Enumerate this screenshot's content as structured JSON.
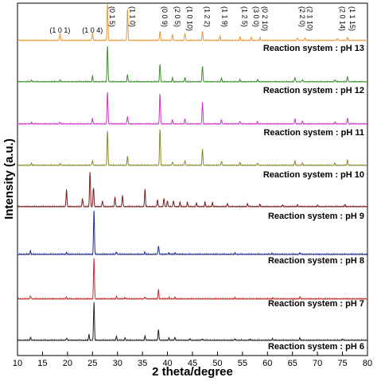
{
  "chart_data": {
    "type": "line",
    "xlabel": "2 theta/degree",
    "ylabel": "Intensity (a.u.)",
    "xlim": [
      10,
      80
    ],
    "x_ticks": [
      10,
      15,
      20,
      25,
      30,
      35,
      40,
      45,
      50,
      55,
      60,
      65,
      70,
      75,
      80
    ],
    "grid": false,
    "legend": "none",
    "peak_annotations": [
      {
        "label": "(1 0 1)",
        "x": 18.5,
        "vertical": false
      },
      {
        "label": "(1 0 4)",
        "x": 25.0,
        "vertical": false
      },
      {
        "label": "(0 1 5)",
        "x": 28.0,
        "vertical": true
      },
      {
        "label": "(1 1 0)",
        "x": 32.0,
        "vertical": true
      },
      {
        "label": "(0 0 9)",
        "x": 38.5,
        "vertical": true
      },
      {
        "label": "(2 0 5)",
        "x": 41.0,
        "vertical": true
      },
      {
        "label": "(1 0 10)",
        "x": 43.5,
        "vertical": true
      },
      {
        "label": "(1 2 2)",
        "x": 47.0,
        "vertical": true
      },
      {
        "label": "(1 1 9)",
        "x": 50.5,
        "vertical": true
      },
      {
        "label": "(1 2 5)",
        "x": 54.5,
        "vertical": true
      },
      {
        "label": "(3 0 0)",
        "x": 56.8,
        "vertical": true
      },
      {
        "label": "(0 2 10)",
        "x": 58.5,
        "vertical": true
      },
      {
        "label": "(2 2 0)",
        "x": 66.0,
        "vertical": true
      },
      {
        "label": "(2 1 10)",
        "x": 67.5,
        "vertical": true
      },
      {
        "label": "(2 0 14)",
        "x": 74.0,
        "vertical": true
      },
      {
        "label": "(1 1 15)",
        "x": 76.0,
        "vertical": true
      }
    ],
    "series": [
      {
        "name": "Reaction system : pH 13",
        "color": "#e69a3a",
        "peaks": [
          [
            18.5,
            0.2
          ],
          [
            25.0,
            0.22
          ],
          [
            28.0,
            1.0
          ],
          [
            32.0,
            0.85
          ],
          [
            38.5,
            0.25
          ],
          [
            41.0,
            0.17
          ],
          [
            43.5,
            0.2
          ],
          [
            47.0,
            0.25
          ],
          [
            50.5,
            0.13
          ],
          [
            54.5,
            0.1
          ],
          [
            56.8,
            0.08
          ],
          [
            58.5,
            0.08
          ],
          [
            66.0,
            0.08
          ],
          [
            67.5,
            0.08
          ],
          [
            74.0,
            0.06
          ],
          [
            76.0,
            0.08
          ]
        ]
      },
      {
        "name": "Reaction system : pH 12",
        "color": "#3f8f2e",
        "peaks": [
          [
            12.8,
            0.05
          ],
          [
            18.5,
            0.05
          ],
          [
            25.0,
            0.16
          ],
          [
            28.0,
            1.0
          ],
          [
            32.0,
            0.2
          ],
          [
            38.5,
            0.48
          ],
          [
            41.0,
            0.1
          ],
          [
            43.5,
            0.12
          ],
          [
            47.0,
            0.45
          ],
          [
            50.8,
            0.1
          ],
          [
            54.5,
            0.06
          ],
          [
            58.0,
            0.07
          ],
          [
            65.5,
            0.13
          ],
          [
            67.0,
            0.07
          ],
          [
            73.5,
            0.06
          ],
          [
            76.0,
            0.16
          ]
        ]
      },
      {
        "name": "Reaction system : pH 11",
        "color": "#cc33cc",
        "peaks": [
          [
            12.8,
            0.05
          ],
          [
            18.5,
            0.05
          ],
          [
            25.0,
            0.16
          ],
          [
            28.0,
            0.9
          ],
          [
            32.0,
            0.22
          ],
          [
            38.5,
            0.85
          ],
          [
            41.0,
            0.12
          ],
          [
            43.5,
            0.14
          ],
          [
            47.0,
            0.6
          ],
          [
            50.8,
            0.12
          ],
          [
            54.5,
            0.08
          ],
          [
            58.0,
            0.07
          ],
          [
            65.5,
            0.15
          ],
          [
            67.0,
            0.08
          ],
          [
            73.5,
            0.06
          ],
          [
            76.0,
            0.17
          ]
        ]
      },
      {
        "name": "Reaction system : pH 10",
        "color": "#8a8a2a",
        "peaks": [
          [
            12.8,
            0.06
          ],
          [
            18.5,
            0.05
          ],
          [
            25.0,
            0.14
          ],
          [
            28.0,
            0.95
          ],
          [
            32.0,
            0.25
          ],
          [
            38.5,
            1.0
          ],
          [
            41.0,
            0.1
          ],
          [
            43.5,
            0.14
          ],
          [
            47.0,
            0.45
          ],
          [
            50.8,
            0.12
          ],
          [
            54.5,
            0.08
          ],
          [
            58.0,
            0.07
          ],
          [
            65.5,
            0.12
          ],
          [
            67.0,
            0.07
          ],
          [
            73.5,
            0.06
          ],
          [
            76.0,
            0.14
          ]
        ]
      },
      {
        "name": "Reaction system : pH 9",
        "color": "#7a1e1e",
        "peaks": [
          [
            19.8,
            0.45
          ],
          [
            23.0,
            0.22
          ],
          [
            24.5,
            0.9
          ],
          [
            25.2,
            0.5
          ],
          [
            27.0,
            0.15
          ],
          [
            29.5,
            0.25
          ],
          [
            31.0,
            0.3
          ],
          [
            35.5,
            0.45
          ],
          [
            38.0,
            0.18
          ],
          [
            39.3,
            0.22
          ],
          [
            40.0,
            0.15
          ],
          [
            41.2,
            0.16
          ],
          [
            42.5,
            0.12
          ],
          [
            44.0,
            0.12
          ],
          [
            45.8,
            0.1
          ],
          [
            47.5,
            0.12
          ],
          [
            49.0,
            0.1
          ],
          [
            52.0,
            0.08
          ],
          [
            56.0,
            0.08
          ],
          [
            58.5,
            0.06
          ],
          [
            63.0,
            0.05
          ],
          [
            66.0,
            0.05
          ],
          [
            70.0,
            0.04
          ],
          [
            75.5,
            0.05
          ]
        ]
      },
      {
        "name": "Reaction system : pH 8",
        "color": "#1f2f8f",
        "peaks": [
          [
            12.6,
            0.08
          ],
          [
            19.8,
            0.04
          ],
          [
            25.3,
            1.0
          ],
          [
            29.8,
            0.06
          ],
          [
            35.5,
            0.05
          ],
          [
            38.2,
            0.2
          ],
          [
            40.3,
            0.04
          ],
          [
            41.5,
            0.04
          ],
          [
            53.5,
            0.03
          ],
          [
            61.0,
            0.03
          ],
          [
            66.5,
            0.04
          ]
        ]
      },
      {
        "name": "Reaction system : pH 7",
        "color": "#c62a2a",
        "peaks": [
          [
            12.6,
            0.08
          ],
          [
            19.8,
            0.04
          ],
          [
            25.3,
            1.0
          ],
          [
            29.8,
            0.06
          ],
          [
            31.5,
            0.04
          ],
          [
            35.5,
            0.05
          ],
          [
            38.2,
            0.22
          ],
          [
            40.3,
            0.04
          ],
          [
            41.5,
            0.04
          ],
          [
            53.5,
            0.03
          ],
          [
            61.0,
            0.03
          ],
          [
            66.5,
            0.05
          ]
        ]
      },
      {
        "name": "Reaction system : pH 6",
        "color": "#222222",
        "peaks": [
          [
            12.6,
            0.08
          ],
          [
            19.8,
            0.06
          ],
          [
            24.3,
            0.15
          ],
          [
            25.3,
            1.0
          ],
          [
            29.8,
            0.1
          ],
          [
            31.5,
            0.06
          ],
          [
            35.5,
            0.12
          ],
          [
            38.2,
            0.28
          ],
          [
            40.3,
            0.06
          ],
          [
            41.5,
            0.08
          ],
          [
            44.5,
            0.04
          ],
          [
            47.0,
            0.04
          ],
          [
            53.5,
            0.04
          ],
          [
            56.5,
            0.03
          ],
          [
            61.0,
            0.04
          ],
          [
            66.5,
            0.06
          ],
          [
            75.0,
            0.04
          ]
        ]
      }
    ]
  }
}
